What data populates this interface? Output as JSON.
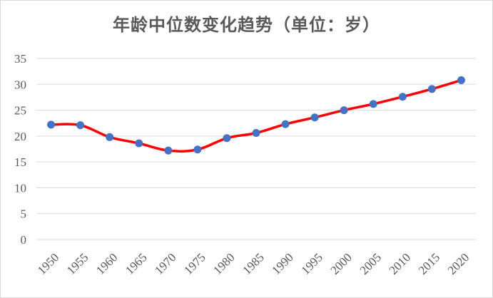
{
  "chart_data": {
    "type": "line",
    "title": "年龄中位数变化趋势（单位：岁）",
    "xlabel": "",
    "ylabel": "",
    "x": [
      "1950",
      "1955",
      "1960",
      "1965",
      "1970",
      "1975",
      "1980",
      "1985",
      "1990",
      "1995",
      "2000",
      "2005",
      "2010",
      "2015",
      "2020"
    ],
    "series": [
      {
        "values": [
          22.2,
          22.1,
          19.8,
          18.6,
          17.2,
          17.4,
          19.6,
          20.6,
          22.3,
          23.6,
          25.0,
          26.2,
          27.6,
          29.1,
          30.8
        ],
        "line_color": "#ff0000",
        "marker_color": "#4472c4"
      }
    ],
    "ylim": [
      0,
      35
    ],
    "yticks": [
      0,
      5,
      10,
      15,
      20,
      25,
      30,
      35
    ],
    "grid": true,
    "legend": "none",
    "colors": {
      "gridline": "#d9d9d9",
      "text": "#595959"
    }
  }
}
